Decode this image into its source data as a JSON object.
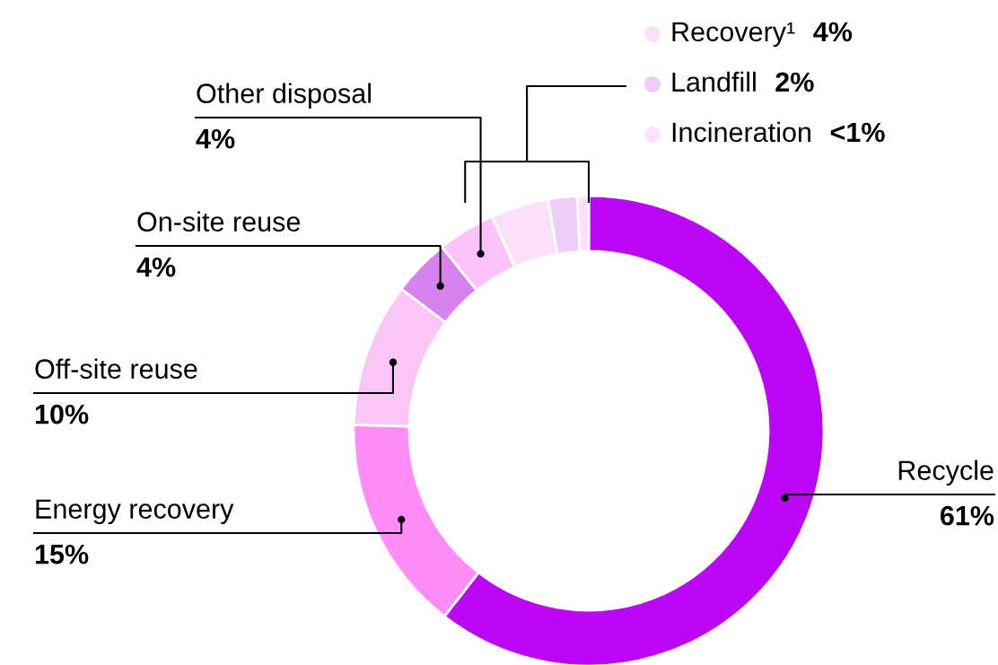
{
  "chart_data": {
    "type": "donut",
    "categories": [
      "Recycle",
      "Energy recovery",
      "Off-site reuse",
      "On-site reuse",
      "Other disposal",
      "Recovery¹",
      "Landfill",
      "Incineration"
    ],
    "values": [
      61,
      15,
      10,
      4,
      4,
      4,
      2,
      0.8
    ],
    "value_labels": [
      "61%",
      "15%",
      "10%",
      "4%",
      "4%",
      "4%",
      "2%",
      "<1%"
    ],
    "colors": [
      "#bb05f5",
      "#ff8cf7",
      "#f9c6f6",
      "#d882f0",
      "#fcc3fa",
      "#fbe1f8",
      "#f0cdf8",
      "#fde0fb"
    ],
    "legend": "top right"
  }
}
